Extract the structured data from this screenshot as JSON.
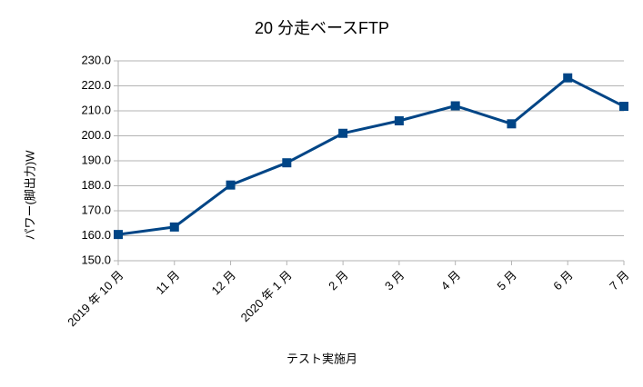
{
  "chart_data": {
    "type": "line",
    "title": "20 分走ベースFTP",
    "y_label": "パワー(脚出力)W",
    "x_label": "テスト実施月",
    "categories": [
      "2019 年 10 月",
      "11 月",
      "12 月",
      "2020 年 1 月",
      "2 月",
      "3 月",
      "4 月",
      "5 月",
      "6 月",
      "7 月"
    ],
    "series": [
      {
        "name": "FTP",
        "color": "#004586",
        "values": [
          160.5,
          163.5,
          180.3,
          189.2,
          201.0,
          206.0,
          212.0,
          204.8,
          223.2,
          211.8
        ]
      }
    ],
    "ylim": [
      150,
      230
    ],
    "yticks": [
      {
        "value": 150,
        "label": "150.0"
      },
      {
        "value": 160,
        "label": "160.0"
      },
      {
        "value": 170,
        "label": "170.0"
      },
      {
        "value": 180,
        "label": "180.0"
      },
      {
        "value": 190,
        "label": "190.0"
      },
      {
        "value": 200,
        "label": "200.0"
      },
      {
        "value": 210,
        "label": "210.0"
      },
      {
        "value": 220,
        "label": "220.0"
      },
      {
        "value": 230,
        "label": "230.0"
      }
    ],
    "grid": true
  }
}
